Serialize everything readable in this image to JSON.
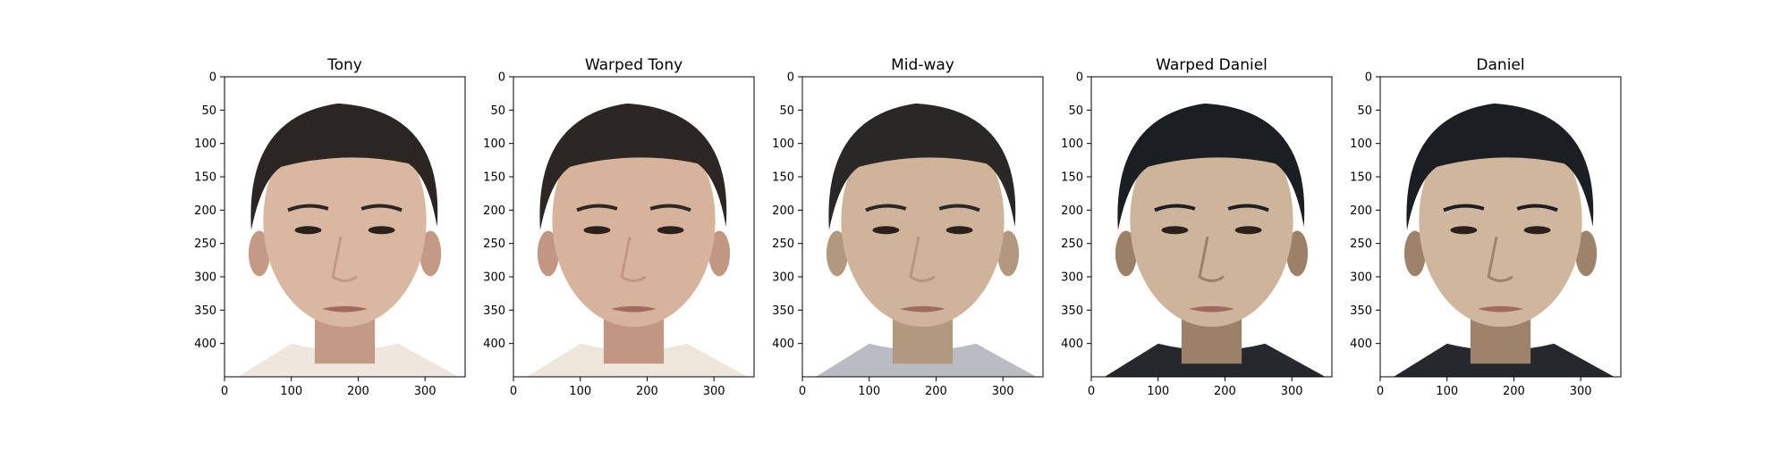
{
  "panels": [
    {
      "title": "Tony",
      "x_ticks": [
        "0",
        "100",
        "200",
        "300"
      ],
      "y_ticks": [
        "0",
        "50",
        "100",
        "150",
        "200",
        "250",
        "300",
        "350",
        "400"
      ],
      "skin": "#d9b7a0",
      "shade": "#c39a84",
      "hair": "#2b2622",
      "cloth": "#efe7dd",
      "bg": "#ffffff"
    },
    {
      "title": "Warped Tony",
      "x_ticks": [
        "0",
        "100",
        "200",
        "300"
      ],
      "y_ticks": [
        "0",
        "50",
        "100",
        "150",
        "200",
        "250",
        "300",
        "350",
        "400"
      ],
      "skin": "#d8b39c",
      "shade": "#c19682",
      "hair": "#2d2723",
      "cloth": "#efe6db",
      "bg": "#ffffff"
    },
    {
      "title": "Mid-way",
      "x_ticks": [
        "0",
        "100",
        "200",
        "300"
      ],
      "y_ticks": [
        "0",
        "50",
        "100",
        "150",
        "200",
        "250",
        "300",
        "350",
        "400"
      ],
      "skin": "#cfb49b",
      "shade": "#b39880",
      "hair": "#2a2826",
      "cloth": "#b9bcc2",
      "bg": "#ffffff"
    },
    {
      "title": "Warped Daniel",
      "x_ticks": [
        "0",
        "100",
        "200",
        "300"
      ],
      "y_ticks": [
        "0",
        "50",
        "100",
        "150",
        "200",
        "250",
        "300",
        "350",
        "400"
      ],
      "skin": "#cdb49a",
      "shade": "#9c8168",
      "hair": "#1b1f24",
      "cloth": "#25292d",
      "bg": "#ffffff"
    },
    {
      "title": "Daniel",
      "x_ticks": [
        "0",
        "100",
        "200",
        "300"
      ],
      "y_ticks": [
        "0",
        "50",
        "100",
        "150",
        "200",
        "250",
        "300",
        "350",
        "400"
      ],
      "skin": "#d0b69c",
      "shade": "#9e836a",
      "hair": "#1b1f24",
      "cloth": "#25292d",
      "bg": "#ffffff"
    }
  ]
}
